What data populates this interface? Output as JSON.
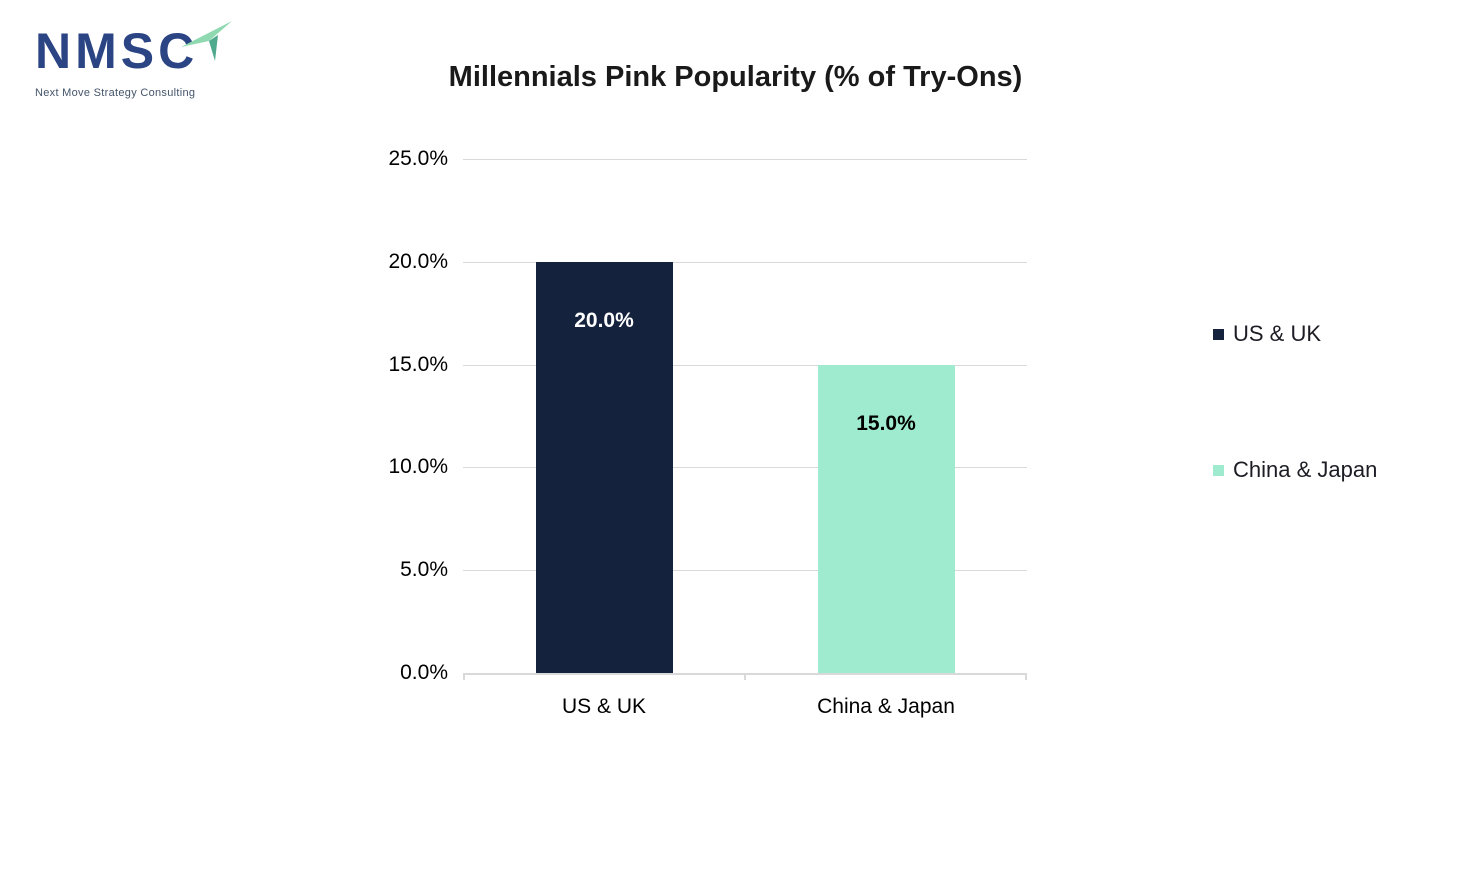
{
  "brand": {
    "name": "NMSC",
    "tagline": "Next Move Strategy Consulting"
  },
  "chart_data": {
    "type": "bar",
    "title": "Millennials Pink Popularity (% of Try-Ons)",
    "categories": [
      "US & UK",
      "China & Japan"
    ],
    "values": [
      20.0,
      15.0
    ],
    "data_labels": [
      "20.0%",
      "15.0%"
    ],
    "bar_colors": [
      "#15223E",
      "#9FEBCF"
    ],
    "data_label_colors": [
      "#FFFFFF",
      "#000000"
    ],
    "xlabel": "",
    "ylabel": "",
    "ylim": [
      0,
      25
    ],
    "grid": true,
    "yticks": [
      {
        "value": 0,
        "label": "0.0%"
      },
      {
        "value": 5,
        "label": "5.0%"
      },
      {
        "value": 10,
        "label": "10.0%"
      },
      {
        "value": 15,
        "label": "15.0%"
      },
      {
        "value": 20,
        "label": "20.0%"
      },
      {
        "value": 25,
        "label": "25.0%"
      }
    ],
    "legend": {
      "position": "right",
      "entries": [
        {
          "label": "US & UK",
          "color": "#15223E"
        },
        {
          "label": "China & Japan",
          "color": "#9FEBCF"
        }
      ]
    }
  },
  "colors": {
    "gridline": "#D9D9D9",
    "axis_line": "#D9D9D9",
    "tick_label": "#000000",
    "legend_text": "#1C1C24",
    "title": "#1A1A1A",
    "logo_text": "#2B4484",
    "logo_tagline": "#44546A",
    "logo_arrow_light": "#8FD9B1",
    "logo_arrow_dark": "#4FA98C"
  }
}
